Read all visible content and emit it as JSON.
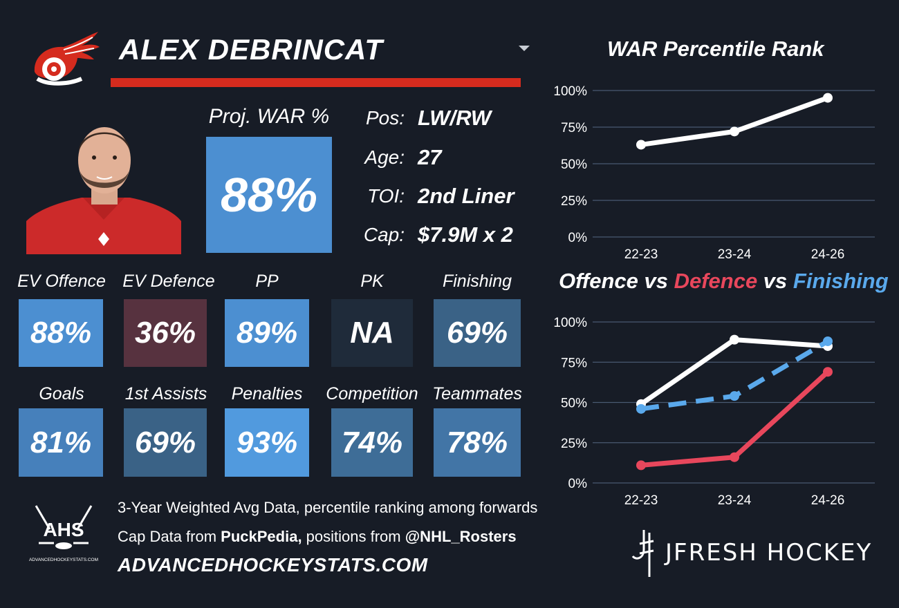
{
  "player": {
    "name": "ALEX DEBRINCAT",
    "proj_label": "Proj. WAR %",
    "proj_value": "88%",
    "info": [
      {
        "label": "Pos:",
        "value": "LW/RW"
      },
      {
        "label": "Age:",
        "value": "27"
      },
      {
        "label": "TOI:",
        "value": "2nd Liner"
      },
      {
        "label": "Cap:",
        "value": "$7.9M x 2"
      }
    ]
  },
  "stats_row1": [
    {
      "label": "EV Offence",
      "value": "88%",
      "color": "#4c8fd1"
    },
    {
      "label": "EV Defence",
      "value": "36%",
      "color": "#57323f"
    },
    {
      "label": "PP",
      "value": "89%",
      "color": "#4c8fd1"
    },
    {
      "label": "PK",
      "value": "NA",
      "color": "#1f2b3a"
    },
    {
      "label": "Finishing",
      "value": "69%",
      "color": "#3a6286"
    }
  ],
  "stats_row2": [
    {
      "label": "Goals",
      "value": "81%",
      "color": "#4680bb"
    },
    {
      "label": "1st Assists",
      "value": "69%",
      "color": "#3a6286"
    },
    {
      "label": "Penalties",
      "value": "93%",
      "color": "#519ade"
    },
    {
      "label": "Competition",
      "value": "74%",
      "color": "#3e6d97"
    },
    {
      "label": "Teammates",
      "value": "78%",
      "color": "#4275a6"
    }
  ],
  "footer": {
    "line1": "3-Year Weighted Avg Data, percentile ranking among forwards",
    "line2_pre": "Cap Data from ",
    "line2_bold1": "PuckPedia,",
    "line2_mid": " positions from ",
    "line2_bold2": "@NHL_Rosters",
    "site": "ADVANCEDHOCKEYSTATS.COM",
    "ahs_logo_text": "AHS",
    "ahs_logo_sub": "ADVANCEDHOCKEYSTATS.COM",
    "brand": "JFRESH HOCKEY"
  },
  "colors": {
    "background": "#171c26",
    "team_red": "#d52b1e",
    "offence": "#ffffff",
    "defence": "#e8475c",
    "finishing": "#5aa9ec",
    "gridline": "#4a5a72"
  },
  "chart_data": [
    {
      "type": "line",
      "title": "WAR Percentile Rank",
      "categories": [
        "22-23",
        "23-24",
        "24-26"
      ],
      "series": [
        {
          "values": [
            63,
            72,
            95
          ],
          "color": "#ffffff",
          "dash": false
        }
      ],
      "ylim": [
        0,
        100
      ],
      "yticks": [
        "0%",
        "25%",
        "50%",
        "75%",
        "100%"
      ],
      "grid": true
    },
    {
      "type": "line",
      "title_parts": [
        {
          "text": "Offence",
          "color": "#ffffff"
        },
        {
          "text": " vs ",
          "color": "#ffffff"
        },
        {
          "text": "Defence",
          "color": "#e8475c"
        },
        {
          "text": " vs ",
          "color": "#ffffff"
        },
        {
          "text": "Finishing",
          "color": "#5aa9ec"
        }
      ],
      "categories": [
        "22-23",
        "23-24",
        "24-26"
      ],
      "series": [
        {
          "name": "Offence",
          "values": [
            49,
            89,
            85
          ],
          "color": "#ffffff",
          "dash": false
        },
        {
          "name": "Defence",
          "values": [
            11,
            16,
            69
          ],
          "color": "#e8475c",
          "dash": false
        },
        {
          "name": "Finishing",
          "values": [
            46,
            54,
            88
          ],
          "color": "#5aa9ec",
          "dash": true
        }
      ],
      "ylim": [
        0,
        100
      ],
      "yticks": [
        "0%",
        "25%",
        "50%",
        "75%",
        "100%"
      ],
      "grid": true
    }
  ]
}
